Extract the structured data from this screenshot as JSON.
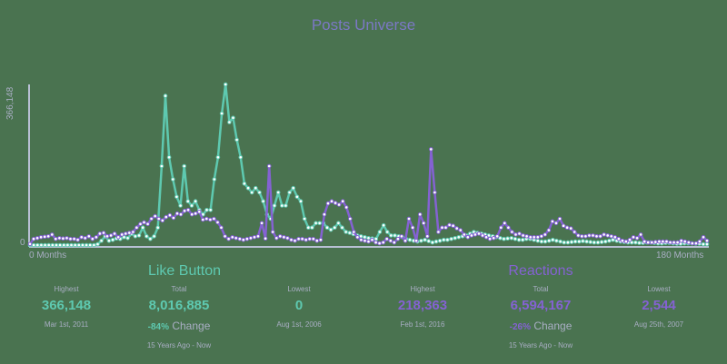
{
  "title": "Posts Universe",
  "axis": {
    "y_top": "366,148",
    "y_zero": "0",
    "x_start": "0 Months",
    "x_end": "180 Months"
  },
  "colors": {
    "like": "#5ec9b0",
    "reactions": "#8462d2",
    "text": "#a9aec4",
    "title": "#7b78c4",
    "background": "#4a7350"
  },
  "panels": [
    {
      "name": "Like Button",
      "color": "#5ec9b0",
      "highest": {
        "label": "Highest",
        "value": "366,148",
        "date": "Mar 1st, 2011"
      },
      "total": {
        "label": "Total",
        "value": "8,016,885",
        "change_pct": "-84%",
        "change_label": "Change",
        "range": "15 Years Ago - Now"
      },
      "lowest": {
        "label": "Lowest",
        "value": "0",
        "date": "Aug 1st, 2006"
      }
    },
    {
      "name": "Reactions",
      "color": "#8462d2",
      "highest": {
        "label": "Highest",
        "value": "218,363",
        "date": "Feb 1st, 2016"
      },
      "total": {
        "label": "Total",
        "value": "6,594,167",
        "change_pct": "-26%",
        "change_label": "Change",
        "range": "15 Years Ago - Now"
      },
      "lowest": {
        "label": "Lowest",
        "value": "2,544",
        "date": "Aug 25th, 2007"
      }
    }
  ],
  "chart_data": {
    "type": "line",
    "title": "Posts Universe",
    "xlabel": "Months",
    "ylabel": "",
    "x_range": [
      0,
      180
    ],
    "ylim": [
      0,
      366148
    ],
    "x_tick_labels": [
      "0 Months",
      "180 Months"
    ],
    "y_tick_labels": [
      "0",
      "366,148"
    ],
    "grid": false,
    "series": [
      {
        "name": "Like Button",
        "color": "#5ec9b0",
        "values": [
          0,
          0,
          0,
          0,
          0,
          0,
          0,
          0,
          0,
          0,
          0,
          0,
          0,
          0,
          0,
          0,
          0,
          0,
          2000,
          10000,
          20000,
          10000,
          12000,
          15000,
          14000,
          18000,
          16000,
          26000,
          20000,
          22000,
          40000,
          20000,
          14000,
          20000,
          40000,
          180000,
          340000,
          200000,
          150000,
          110000,
          90000,
          180000,
          100000,
          90000,
          100000,
          80000,
          70000,
          80000,
          80000,
          150000,
          200000,
          300000,
          366148,
          280000,
          290000,
          240000,
          200000,
          140000,
          130000,
          120000,
          130000,
          120000,
          100000,
          70000,
          60000,
          90000,
          120000,
          90000,
          90000,
          120000,
          130000,
          110000,
          100000,
          60000,
          40000,
          40000,
          50000,
          50000,
          50000,
          40000,
          35000,
          40000,
          50000,
          40000,
          30000,
          28000,
          25000,
          22000,
          20000,
          18000,
          16000,
          15000,
          14000,
          30000,
          45000,
          30000,
          22000,
          22000,
          20000,
          18000,
          14000,
          12000,
          10000,
          8000,
          10000,
          12000,
          9000,
          6000,
          8000,
          10000,
          12000,
          12000,
          14000,
          16000,
          18000,
          20000,
          22000,
          26000,
          30000,
          28000,
          26000,
          24000,
          22000,
          20000,
          18000,
          16000,
          14000,
          15000,
          16000,
          14000,
          12000,
          12000,
          14000,
          14000,
          12000,
          10000,
          8000,
          8000,
          10000,
          12000,
          10000,
          8000,
          6000,
          6000,
          7000,
          8000,
          8000,
          9000,
          8000,
          7000,
          6000,
          6000,
          7000,
          8000,
          10000,
          12000,
          10000,
          8000,
          7000,
          6000,
          6000,
          6000,
          5000,
          5000,
          6000,
          6000,
          5000,
          4000,
          4000,
          5000,
          5000,
          4000,
          3000,
          3000,
          4000,
          4000,
          4000,
          3000,
          3000,
          2000,
          2000
        ],
        "note": "approximate monthly values estimated from plot"
      },
      {
        "name": "Reactions",
        "color": "#8462d2",
        "values": [
          2544,
          14000,
          16000,
          18000,
          19000,
          20000,
          24000,
          14000,
          16000,
          15000,
          16000,
          14000,
          14000,
          12000,
          18000,
          16000,
          20000,
          14000,
          18000,
          26000,
          28000,
          20000,
          22000,
          26000,
          18000,
          24000,
          26000,
          28000,
          30000,
          40000,
          48000,
          52000,
          48000,
          60000,
          66000,
          60000,
          56000,
          64000,
          68000,
          62000,
          72000,
          70000,
          78000,
          80000,
          70000,
          72000,
          76000,
          58000,
          60000,
          58000,
          60000,
          52000,
          40000,
          20000,
          14000,
          18000,
          16000,
          14000,
          12000,
          14000,
          16000,
          18000,
          20000,
          50000,
          15000,
          180000,
          30000,
          16000,
          20000,
          18000,
          16000,
          12000,
          10000,
          14000,
          14000,
          12000,
          14000,
          14000,
          10000,
          12000,
          70000,
          95000,
          100000,
          96000,
          92000,
          100000,
          86000,
          60000,
          30000,
          18000,
          12000,
          10000,
          8000,
          12000,
          6000,
          4000,
          6000,
          14000,
          10000,
          6000,
          14000,
          20000,
          10000,
          60000,
          40000,
          10000,
          70000,
          50000,
          20000,
          218363,
          120000,
          30000,
          40000,
          40000,
          46000,
          44000,
          38000,
          34000,
          24000,
          18000,
          22000,
          24000,
          26000,
          22000,
          18000,
          14000,
          16000,
          20000,
          40000,
          50000,
          40000,
          30000,
          24000,
          26000,
          22000,
          20000,
          18000,
          18000,
          18000,
          20000,
          24000,
          34000,
          54000,
          50000,
          60000,
          44000,
          40000,
          38000,
          30000,
          22000,
          20000,
          20000,
          22000,
          22000,
          20000,
          20000,
          24000,
          22000,
          20000,
          18000,
          14000,
          10000,
          8000,
          12000,
          18000,
          16000,
          24000,
          8000,
          6000,
          6000,
          7000,
          8000,
          8000,
          8000,
          6000,
          6000,
          6000,
          10000,
          8000,
          6000,
          4000,
          4000,
          8000,
          18000,
          10000
        ],
        "note": "approximate monthly values estimated from plot"
      }
    ],
    "summary": {
      "Like Button": {
        "highest": 366148,
        "highest_date": "Mar 1st, 2011",
        "total": 8016885,
        "change": "-84%",
        "lowest": 0,
        "lowest_date": "Aug 1st, 2006"
      },
      "Reactions": {
        "highest": 218363,
        "highest_date": "Feb 1st, 2016",
        "total": 6594167,
        "change": "-26%",
        "lowest": 2544,
        "lowest_date": "Aug 25th, 2007"
      }
    }
  }
}
